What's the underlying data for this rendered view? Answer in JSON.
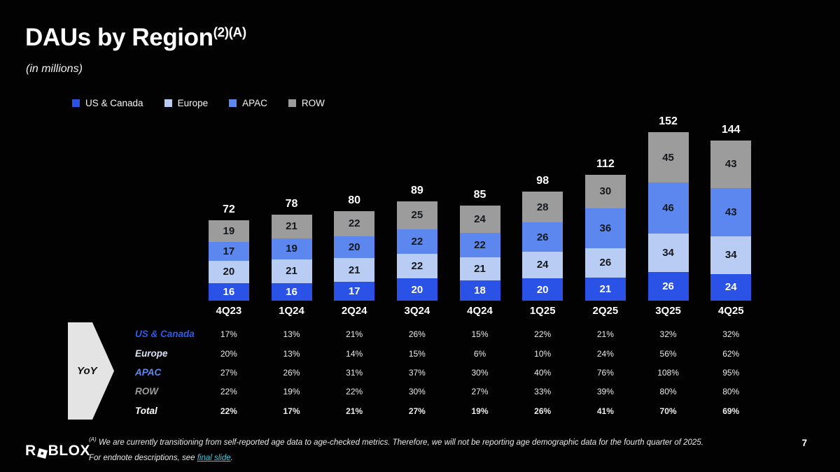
{
  "slide": {
    "title": "DAUs by Region",
    "title_superscript": "(2)(A)",
    "subtitle": "(in millions)",
    "page_number": "7",
    "logo_prefix": "R",
    "logo_suffix": "BLOX"
  },
  "legend": [
    {
      "label": "US & Canada",
      "color": "#2B52E6"
    },
    {
      "label": "Europe",
      "color": "#B9CDF4"
    },
    {
      "label": "APAC",
      "color": "#5B87EE"
    },
    {
      "label": "ROW",
      "color": "#9C9C9C"
    }
  ],
  "chart_data": {
    "type": "bar",
    "subtype": "stacked",
    "title": "DAUs by Region (in millions)",
    "categories": [
      "4Q23",
      "1Q24",
      "2Q24",
      "3Q24",
      "4Q24",
      "1Q25",
      "2Q25",
      "3Q25",
      "4Q25"
    ],
    "totals": [
      72,
      78,
      80,
      89,
      85,
      98,
      112,
      152,
      144
    ],
    "series": [
      {
        "name": "US & Canada",
        "color": "#2B52E6",
        "text_color": "#FFFFFF",
        "values": [
          16,
          16,
          17,
          20,
          18,
          20,
          21,
          26,
          24
        ]
      },
      {
        "name": "Europe",
        "color": "#B9CDF4",
        "text_color": "#15181C",
        "values": [
          20,
          21,
          21,
          22,
          21,
          24,
          26,
          34,
          34
        ]
      },
      {
        "name": "APAC",
        "color": "#5B87EE",
        "text_color": "#15181C",
        "values": [
          17,
          19,
          20,
          22,
          22,
          26,
          36,
          46,
          43
        ]
      },
      {
        "name": "ROW",
        "color": "#9C9C9C",
        "text_color": "#15181C",
        "values": [
          19,
          21,
          22,
          25,
          24,
          28,
          30,
          45,
          43
        ]
      }
    ],
    "legend_position": "top",
    "grid": false,
    "ylim": [
      0,
      160
    ]
  },
  "yoy_table": {
    "arrow_label": "YoY",
    "rows": [
      {
        "label": "US & Canada",
        "label_color": "#2E5CE8",
        "bold": false,
        "values": [
          "17%",
          "13%",
          "21%",
          "26%",
          "15%",
          "22%",
          "21%",
          "32%",
          "32%"
        ]
      },
      {
        "label": "Europe",
        "label_color": "#D7E1F6",
        "bold": false,
        "values": [
          "20%",
          "13%",
          "14%",
          "15%",
          "6%",
          "10%",
          "24%",
          "56%",
          "62%"
        ]
      },
      {
        "label": "APAC",
        "label_color": "#5D8CF0",
        "bold": false,
        "values": [
          "27%",
          "26%",
          "31%",
          "37%",
          "30%",
          "40%",
          "76%",
          "108%",
          "95%"
        ]
      },
      {
        "label": "ROW",
        "label_color": "#9C9C9C",
        "bold": false,
        "values": [
          "22%",
          "19%",
          "22%",
          "30%",
          "27%",
          "33%",
          "39%",
          "80%",
          "80%"
        ]
      },
      {
        "label": "Total",
        "label_color": "#FFFFFF",
        "bold": true,
        "values": [
          "22%",
          "17%",
          "21%",
          "27%",
          "19%",
          "26%",
          "41%",
          "70%",
          "69%"
        ]
      }
    ]
  },
  "footnote": {
    "superscript": "(A)",
    "line1": " We are currently transitioning from self-reported age data to age-checked metrics. Therefore, we will not be reporting age demographic data for the fourth quarter of 2025.",
    "line2_prefix": "For endnote descriptions, see ",
    "link_text": "final slide",
    "line2_suffix": "."
  }
}
